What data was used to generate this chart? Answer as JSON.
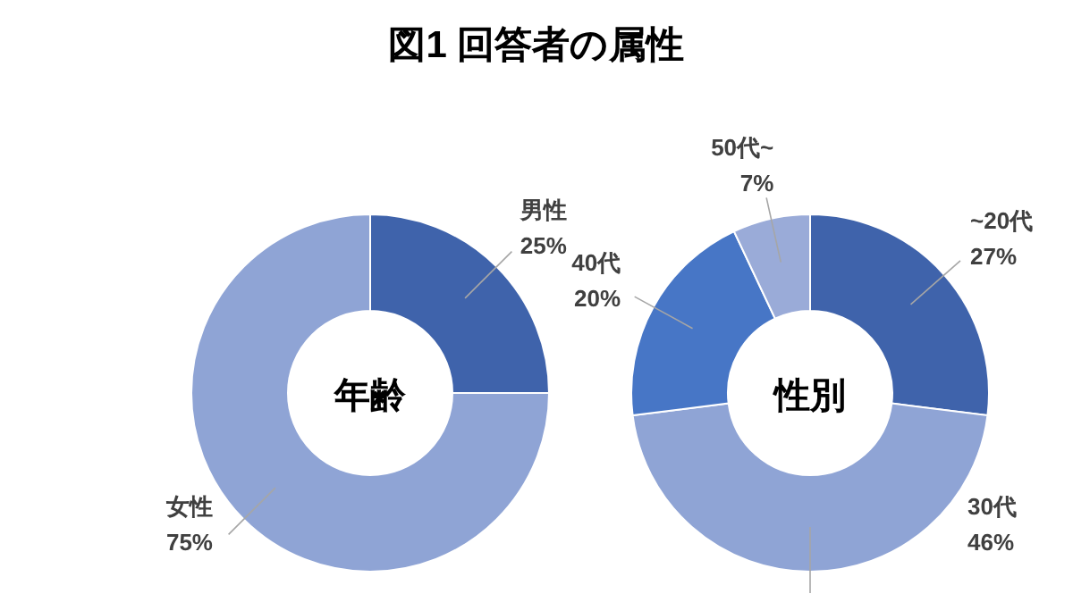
{
  "chart_data": [
    {
      "type": "donut",
      "title": "図1 回答者の属性",
      "categories": [
        "男性",
        "女性"
      ],
      "values": [
        25,
        75
      ],
      "colors": [
        "#3f63ab",
        "#8fa4d5"
      ],
      "value_labels": [
        "25%",
        "75%"
      ],
      "annotations": [
        "年齢"
      ]
    },
    {
      "type": "donut",
      "categories": [
        "~20代",
        "30代",
        "40代",
        "50代~"
      ],
      "values": [
        27,
        46,
        20,
        7
      ],
      "colors": [
        "#3f63ab",
        "#8fa4d5",
        "#4776c6",
        "#9aabd8"
      ],
      "value_labels": [
        "27%",
        "46%",
        "20%",
        "7%"
      ],
      "annotations": [
        "性別"
      ]
    }
  ]
}
